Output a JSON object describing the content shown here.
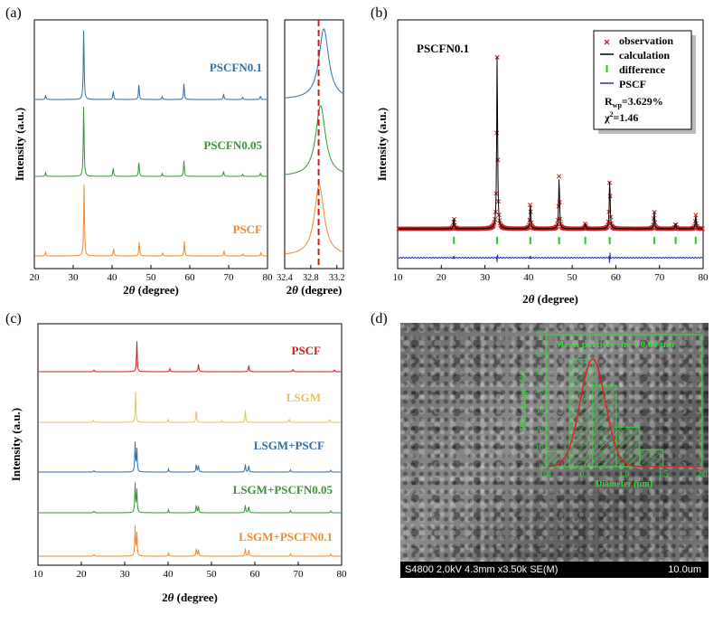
{
  "panels": {
    "a": "(a)",
    "b": "(b)",
    "c": "(c)",
    "d": "(d)"
  },
  "chart_data": [
    {
      "id": "a-main",
      "type": "line",
      "xlabel": "2θ (degree)",
      "ylabel": "Intensity (a.u.)",
      "xlim": [
        20,
        80
      ],
      "xticks": [
        20,
        30,
        40,
        50,
        60,
        70,
        80
      ],
      "series": [
        {
          "name": "PSCFN0.1",
          "color": "#2e6fa7",
          "peaks": [
            [
              22.9,
              0.06
            ],
            [
              32.7,
              1.0
            ],
            [
              40.3,
              0.12
            ],
            [
              46.9,
              0.22
            ],
            [
              52.9,
              0.04
            ],
            [
              58.5,
              0.22
            ],
            [
              68.7,
              0.08
            ],
            [
              73.6,
              0.03
            ],
            [
              78.2,
              0.05
            ]
          ]
        },
        {
          "name": "PSCFN0.05",
          "color": "#3a923a",
          "peaks": [
            [
              22.9,
              0.05
            ],
            [
              32.7,
              1.0
            ],
            [
              40.3,
              0.12
            ],
            [
              46.9,
              0.21
            ],
            [
              52.9,
              0.04
            ],
            [
              58.5,
              0.22
            ],
            [
              68.7,
              0.07
            ],
            [
              73.6,
              0.03
            ],
            [
              78.2,
              0.05
            ]
          ]
        },
        {
          "name": "PSCF",
          "color": "#ee8a2a",
          "peaks": [
            [
              22.9,
              0.05
            ],
            [
              32.8,
              1.0
            ],
            [
              40.4,
              0.11
            ],
            [
              47.0,
              0.2
            ],
            [
              53.0,
              0.04
            ],
            [
              58.6,
              0.2
            ],
            [
              68.8,
              0.07
            ],
            [
              73.7,
              0.03
            ],
            [
              78.3,
              0.05
            ]
          ]
        }
      ]
    },
    {
      "id": "a-zoom",
      "type": "line",
      "xlabel": "2θ (degree)",
      "xlim": [
        32.4,
        33.3
      ],
      "xticks": [
        32.4,
        32.8,
        33.2
      ],
      "reference_line": 32.92,
      "series": [
        {
          "name": "PSCFN0.1",
          "color": "#2e6fa7",
          "center": 33.0,
          "width": 0.09
        },
        {
          "name": "PSCFN0.05",
          "color": "#3a923a",
          "center": 32.95,
          "width": 0.09
        },
        {
          "name": "PSCF",
          "color": "#ee8a2a",
          "center": 32.93,
          "width": 0.09
        }
      ]
    },
    {
      "id": "b",
      "type": "scatter",
      "title": "PSCFN0.1",
      "xlabel": "2θ (degree)",
      "ylabel": "Intensity (a.u.)",
      "xlim": [
        10,
        80
      ],
      "xticks": [
        10,
        20,
        30,
        40,
        50,
        60,
        70,
        80
      ],
      "peaks": [
        [
          22.9,
          0.06
        ],
        [
          32.8,
          1.0
        ],
        [
          40.4,
          0.15
        ],
        [
          47.0,
          0.3
        ],
        [
          53.0,
          0.03
        ],
        [
          58.6,
          0.29
        ],
        [
          68.8,
          0.1
        ],
        [
          73.7,
          0.03
        ],
        [
          78.3,
          0.08
        ]
      ],
      "reflections": [
        22.9,
        32.8,
        40.4,
        47.0,
        53.0,
        58.6,
        68.8,
        73.7,
        78.3
      ],
      "legend": {
        "items": [
          "observation",
          "calculation",
          "difference",
          "PSCF"
        ],
        "rwp": "R",
        "rwp_sub": "wp",
        "rwp_val": "=3.629%",
        "chi": "χ",
        "chi_sup": "2",
        "chi_val": "=1.46"
      },
      "colors": {
        "obs": "#c81e1e",
        "calc": "#000000",
        "tick": "#22cc22",
        "diff": "#1a2bd0"
      }
    },
    {
      "id": "c",
      "type": "line",
      "xlabel": "2θ (degree)",
      "ylabel": "Intensity (a.u.)",
      "xlim": [
        10,
        80
      ],
      "xticks": [
        10,
        20,
        30,
        40,
        50,
        60,
        70,
        80
      ],
      "series": [
        {
          "name": "PSCF",
          "color": "#c21f1f",
          "peaks": [
            [
              22.9,
              0.05
            ],
            [
              32.8,
              1.0
            ],
            [
              40.4,
              0.1
            ],
            [
              47.0,
              0.25
            ],
            [
              58.6,
              0.22
            ],
            [
              68.8,
              0.08
            ],
            [
              78.3,
              0.06
            ]
          ]
        },
        {
          "name": "LSGM",
          "color": "#e3c366",
          "peaks": [
            [
              22.8,
              0.06
            ],
            [
              32.5,
              1.0
            ],
            [
              40.0,
              0.1
            ],
            [
              46.5,
              0.42
            ],
            [
              52.4,
              0.05
            ],
            [
              57.8,
              0.4
            ],
            [
              67.9,
              0.1
            ],
            [
              77.2,
              0.08
            ]
          ]
        },
        {
          "name": "LSGM+PSCF",
          "color": "#2e6fa7",
          "peaks": [
            [
              22.9,
              0.05
            ],
            [
              32.4,
              0.95
            ],
            [
              32.8,
              0.75
            ],
            [
              40.1,
              0.1
            ],
            [
              46.5,
              0.25
            ],
            [
              47.0,
              0.22
            ],
            [
              57.8,
              0.25
            ],
            [
              58.6,
              0.22
            ],
            [
              68.2,
              0.08
            ],
            [
              77.5,
              0.06
            ]
          ]
        },
        {
          "name": "LSGM+PSCFN0.05",
          "color": "#3a923a",
          "peaks": [
            [
              22.9,
              0.05
            ],
            [
              32.4,
              0.95
            ],
            [
              32.8,
              0.75
            ],
            [
              40.1,
              0.1
            ],
            [
              46.5,
              0.25
            ],
            [
              47.0,
              0.22
            ],
            [
              57.8,
              0.25
            ],
            [
              58.6,
              0.22
            ],
            [
              68.2,
              0.08
            ],
            [
              77.5,
              0.06
            ]
          ]
        },
        {
          "name": "LSGM+PSCFN0.1",
          "color": "#ee8a2a",
          "peaks": [
            [
              22.9,
              0.05
            ],
            [
              32.4,
              0.95
            ],
            [
              32.8,
              0.75
            ],
            [
              40.1,
              0.1
            ],
            [
              46.5,
              0.25
            ],
            [
              47.0,
              0.22
            ],
            [
              57.8,
              0.25
            ],
            [
              58.6,
              0.22
            ],
            [
              68.2,
              0.08
            ],
            [
              77.5,
              0.06
            ]
          ]
        }
      ]
    },
    {
      "id": "d-inset",
      "type": "bar",
      "title": "Mean particle size : 0.60 μm",
      "xlabel": "Diameter (μm)",
      "ylabel": "Percentage (%)",
      "xlim": [
        0,
        2.0
      ],
      "ylim": [
        0,
        70
      ],
      "xticks": [
        "0.0",
        "0.5",
        "1.0",
        "1.5",
        "2.0"
      ],
      "yticks": [
        "0",
        "10",
        "20",
        "30",
        "40",
        "50",
        "60",
        "70"
      ],
      "bins": [
        [
          0.0,
          0.3,
          8
        ],
        [
          0.3,
          0.6,
          57
        ],
        [
          0.6,
          0.9,
          43
        ],
        [
          0.9,
          1.2,
          21
        ],
        [
          1.2,
          1.5,
          9
        ]
      ],
      "fit_mean": 0.6,
      "fit_sigma": 0.16,
      "fit_peak": 57,
      "colors": {
        "frame": "#33dd33",
        "fit": "#e02020"
      }
    }
  ],
  "sem": {
    "info": "S4800 2.0kV 4.3mm x3.50k SE(M)",
    "scale": "10.0um"
  }
}
